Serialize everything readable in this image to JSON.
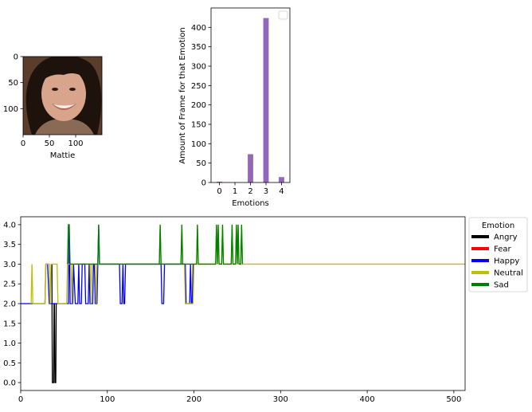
{
  "chart_data": [
    {
      "type": "image",
      "xlabel": "Mattie",
      "xticks": [
        0,
        50,
        100
      ],
      "yticks": [
        0,
        50,
        100
      ],
      "extent": [
        0,
        150,
        150,
        0
      ],
      "image_colors": {
        "background": "#5a3d2b",
        "hair": "#1e120c",
        "skin": "#d8a48c",
        "shirt": "#8a6a55",
        "mouth": "#f4ece8",
        "lips": "#b5605a"
      }
    },
    {
      "type": "bar",
      "categories": [
        0,
        1,
        2,
        3,
        4
      ],
      "values": [
        2,
        0,
        73,
        424,
        14
      ],
      "xlabel": "Emotions",
      "ylabel": "Amount of Frame for that Emotion",
      "ylim": [
        0,
        450
      ],
      "yticks": [
        0,
        50,
        100,
        150,
        200,
        250,
        300,
        350,
        400
      ],
      "bar_color": "#9467bd",
      "legend": "top-right (empty)"
    },
    {
      "type": "line",
      "xlim": [
        0,
        513
      ],
      "ylim": [
        -0.2,
        4.2
      ],
      "xticks": [
        0,
        100,
        200,
        300,
        400,
        500
      ],
      "yticks": [
        "0.0",
        "0.5",
        "1.0",
        "1.5",
        "2.0",
        "2.5",
        "3.0",
        "3.5",
        "4.0"
      ],
      "legend": {
        "title": "Emotion",
        "placement": "outside-right",
        "entries": [
          {
            "label": "Angry",
            "color": "#000000"
          },
          {
            "label": "Fear",
            "color": "#ff0000"
          },
          {
            "label": "Happy",
            "color": "#0000ff"
          },
          {
            "label": "Neutral",
            "color": "#bfbf00"
          },
          {
            "label": "Sad",
            "color": "#008000"
          }
        ]
      },
      "series": [
        {
          "name": "Angry",
          "color": "#000000",
          "points": [
            [
              36,
              3
            ],
            [
              36.5,
              0
            ],
            [
              38,
              0
            ],
            [
              38.5,
              2
            ],
            [
              39,
              2
            ],
            [
              39.5,
              0
            ],
            [
              40.5,
              0
            ],
            [
              41,
              2
            ]
          ]
        },
        {
          "name": "Happy",
          "color": "#0000ff",
          "points": [
            [
              0,
              2
            ],
            [
              12,
              2
            ],
            [
              13,
              2
            ],
            [
              28,
              2
            ],
            [
              29,
              3
            ],
            [
              31,
              3
            ],
            [
              33,
              2
            ],
            [
              35,
              2
            ],
            [
              38.5,
              2
            ],
            [
              39,
              2
            ],
            [
              43,
              2
            ],
            [
              53,
              2
            ],
            [
              55,
              2
            ],
            [
              56,
              4
            ],
            [
              57,
              2
            ],
            [
              60,
              2
            ],
            [
              61,
              3
            ],
            [
              63,
              2
            ],
            [
              66,
              2
            ],
            [
              67,
              3
            ],
            [
              68,
              2
            ],
            [
              70,
              2
            ],
            [
              71,
              3
            ],
            [
              74,
              3
            ],
            [
              75,
              2
            ],
            [
              78,
              2
            ],
            [
              79,
              3
            ],
            [
              80,
              2
            ],
            [
              83,
              2
            ],
            [
              84,
              3
            ],
            [
              85,
              3
            ],
            [
              86,
              2
            ],
            [
              88,
              2
            ],
            [
              89,
              3
            ],
            [
              90,
              4
            ],
            [
              91,
              3
            ],
            [
              114,
              3
            ],
            [
              115,
              2
            ],
            [
              117,
              2
            ],
            [
              118,
              3
            ],
            [
              119,
              2
            ],
            [
              120,
              2
            ],
            [
              121,
              3
            ],
            [
              162,
              3
            ],
            [
              163,
              2
            ],
            [
              165,
              2
            ],
            [
              166,
              3
            ],
            [
              190,
              3
            ],
            [
              191,
              2
            ],
            [
              195,
              2
            ],
            [
              196,
              3
            ],
            [
              197,
              2
            ],
            [
              198,
              2
            ],
            [
              199,
              3
            ]
          ]
        },
        {
          "name": "Neutral",
          "color": "#bfbf00",
          "points": [
            [
              12,
              2
            ],
            [
              13,
              3
            ],
            [
              14,
              2
            ],
            [
              28,
              2
            ],
            [
              29,
              3
            ],
            [
              33,
              3
            ],
            [
              34,
              2
            ],
            [
              35,
              3
            ],
            [
              40,
              3
            ],
            [
              41,
              3
            ],
            [
              42,
              3
            ],
            [
              43,
              2
            ],
            [
              53,
              2
            ],
            [
              54,
              3
            ],
            [
              57,
              3
            ],
            [
              58,
              3
            ],
            [
              59,
              2
            ],
            [
              60,
              3
            ],
            [
              66,
              3
            ],
            [
              67,
              3
            ],
            [
              70,
              3
            ],
            [
              71,
              3
            ],
            [
              80,
              3
            ],
            [
              81,
              2
            ],
            [
              82,
              3
            ],
            [
              86,
              3
            ],
            [
              87,
              2
            ],
            [
              88,
              3
            ],
            [
              90,
              3
            ],
            [
              160,
              3
            ],
            [
              161,
              4
            ],
            [
              162,
              3
            ],
            [
              185,
              3
            ],
            [
              186,
              4
            ],
            [
              187,
              3
            ],
            [
              189,
              3
            ],
            [
              190,
              2
            ],
            [
              199,
              2
            ],
            [
              200,
              3
            ],
            [
              203,
              3
            ],
            [
              204,
              4
            ],
            [
              205,
              3
            ],
            [
              225,
              3
            ],
            [
              226,
              4
            ],
            [
              227,
              3
            ],
            [
              228,
              4
            ],
            [
              229,
              3
            ],
            [
              232,
              3
            ],
            [
              233,
              4
            ],
            [
              234,
              3
            ],
            [
              243,
              3
            ],
            [
              244,
              4
            ],
            [
              245,
              3
            ],
            [
              248,
              3
            ],
            [
              249,
              4
            ],
            [
              250,
              3
            ],
            [
              251,
              4
            ],
            [
              252,
              3
            ],
            [
              254,
              3
            ],
            [
              255,
              4
            ],
            [
              256,
              3
            ],
            [
              513,
              3
            ]
          ]
        },
        {
          "name": "Sad",
          "color": "#008000",
          "points": [
            [
              54,
              3
            ],
            [
              55,
              4
            ],
            [
              56,
              4
            ],
            [
              57,
              3
            ],
            [
              89,
              3
            ],
            [
              90,
              4
            ],
            [
              91,
              3
            ],
            [
              160,
              3
            ],
            [
              161,
              4
            ],
            [
              162,
              3
            ],
            [
              185,
              3
            ],
            [
              186,
              4
            ],
            [
              187,
              3
            ],
            [
              203,
              3
            ],
            [
              204,
              4
            ],
            [
              205,
              3
            ],
            [
              225,
              3
            ],
            [
              226,
              4
            ],
            [
              227,
              3
            ],
            [
              228,
              4
            ],
            [
              229,
              3
            ],
            [
              232,
              3
            ],
            [
              233,
              4
            ],
            [
              234,
              3
            ],
            [
              243,
              3
            ],
            [
              244,
              4
            ],
            [
              245,
              3
            ],
            [
              248,
              3
            ],
            [
              249,
              4
            ],
            [
              250,
              3
            ],
            [
              251,
              4
            ],
            [
              252,
              3
            ],
            [
              254,
              3
            ],
            [
              255,
              4
            ],
            [
              256,
              3
            ]
          ]
        }
      ]
    }
  ]
}
